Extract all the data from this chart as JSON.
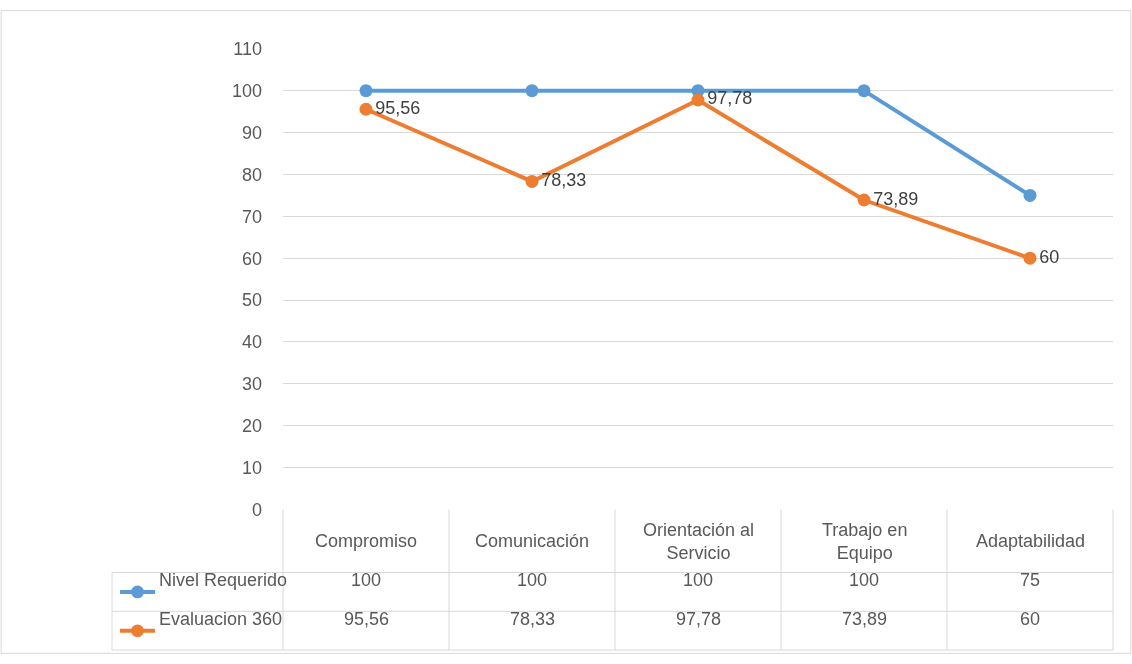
{
  "chart_data": {
    "type": "line",
    "categories": [
      "Compromiso",
      "Comunicación",
      "Orientación al Servicio",
      "Trabajo en Equipo",
      "Adaptabilidad"
    ],
    "ylim": [
      0,
      110
    ],
    "yticks": [
      0,
      10,
      20,
      30,
      40,
      50,
      60,
      70,
      80,
      90,
      100,
      110
    ],
    "grid": "y",
    "legend": "bottom",
    "marker": "circle",
    "line_style": "solid",
    "series": [
      {
        "name": "Nivel Requerido",
        "color": "#5b9bd5",
        "values": [
          100,
          100,
          100,
          100,
          75
        ],
        "value_labels": [
          "100",
          "100",
          "100",
          "100",
          "75"
        ]
      },
      {
        "name": "Evaluacion 360",
        "color": "#ed7d31",
        "values": [
          95.56,
          78.33,
          97.78,
          73.89,
          60
        ],
        "value_labels": [
          "95,56",
          "78,33",
          "97,78",
          "73,89",
          "60"
        ],
        "data_labels": true
      }
    ]
  }
}
